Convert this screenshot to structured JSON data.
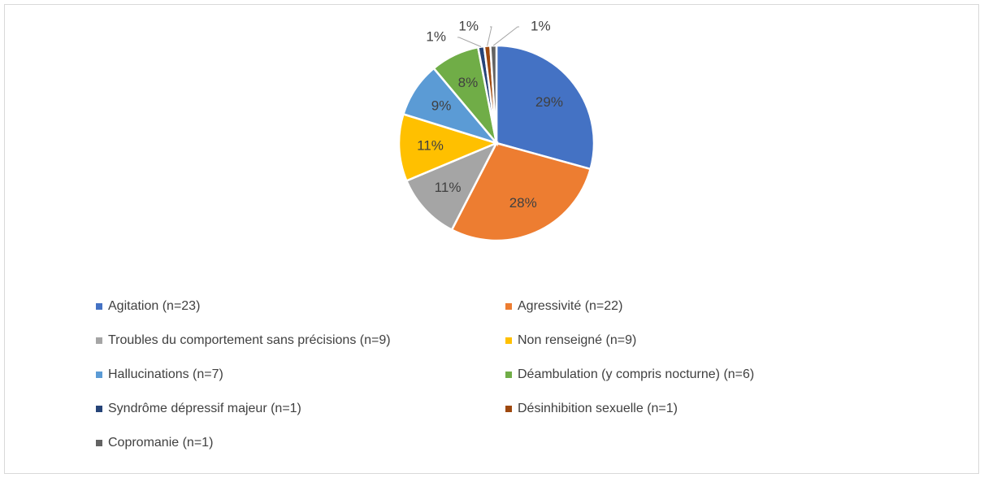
{
  "chart_data": {
    "type": "pie",
    "categories": [
      "Agitation (n=23)",
      "Agressivité (n=22)",
      "Troubles du comportement sans précisions (n=9)",
      "Non renseigné (n=9)",
      "Hallucinations (n=7)",
      "Déambulation (y compris nocturne) (n=6)",
      "Syndrôme dépressif majeur (n=1)",
      "Désinhibition sexuelle (n=1)",
      "Copromanie (n=1)"
    ],
    "values": [
      29,
      28,
      11,
      11,
      9,
      8,
      1,
      1,
      1
    ],
    "value_labels": [
      "29%",
      "28%",
      "11%",
      "11%",
      "9%",
      "8%",
      "1%",
      "1%",
      "1%"
    ],
    "colors": [
      "#4472c4",
      "#ed7d31",
      "#a5a5a5",
      "#ffc000",
      "#5b9bd5",
      "#70ad47",
      "#264478",
      "#9e480e",
      "#636363"
    ],
    "legend": "bottom"
  }
}
